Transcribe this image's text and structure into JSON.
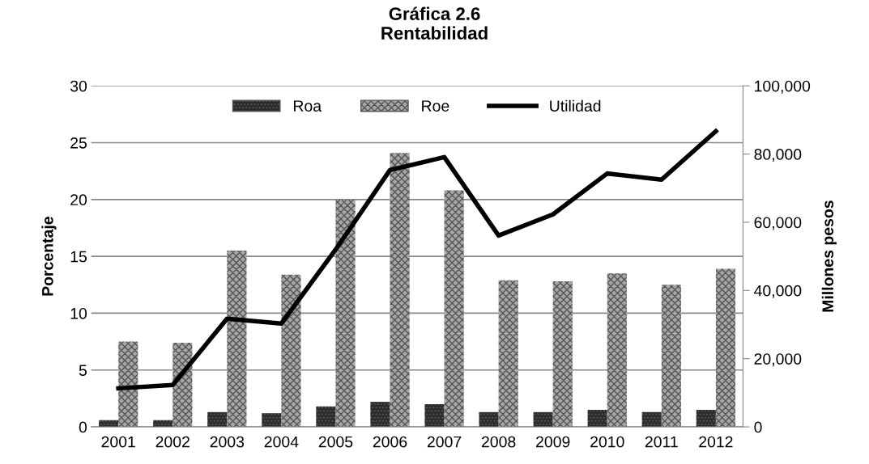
{
  "chart_data": {
    "type": "bar",
    "title": "Gráfica 2.6\nRentabilidad",
    "ylabel": "Porcentaje",
    "y2label": "Millones pesos",
    "categories": [
      "2001",
      "2002",
      "2003",
      "2004",
      "2005",
      "2006",
      "2007",
      "2008",
      "2009",
      "2010",
      "2011",
      "2012"
    ],
    "series": [
      {
        "name": "Roa",
        "color": "#2b2b2b",
        "values": [
          0.6,
          0.6,
          1.3,
          1.2,
          1.8,
          2.2,
          2.0,
          1.3,
          1.3,
          1.5,
          1.3,
          1.5
        ]
      },
      {
        "name": "Roe",
        "color": "#a6a6a6",
        "values": [
          7.5,
          7.4,
          15.5,
          13.4,
          20.0,
          24.1,
          20.8,
          12.9,
          12.8,
          13.5,
          12.5,
          13.9
        ]
      },
      {
        "name": "Utilidad",
        "type": "line",
        "axis": "y2",
        "color": "#000000",
        "values": [
          11300,
          12300,
          31700,
          30300,
          52000,
          75300,
          79100,
          56100,
          62300,
          74300,
          72500,
          86700
        ]
      }
    ],
    "ylim": [
      0,
      30
    ],
    "yticks": [
      0,
      5,
      10,
      15,
      20,
      25,
      30
    ],
    "y2lim": [
      0,
      100000
    ],
    "y2ticks": [
      0,
      {
        "value": 20000,
        "label": "20,000"
      },
      {
        "value": 40000,
        "label": "40,000"
      },
      {
        "value": 60000,
        "label": "60,000"
      },
      {
        "value": 80000,
        "label": "80,000"
      },
      {
        "value": 100000,
        "label": "100,000"
      }
    ],
    "grid": "y",
    "legend": "top",
    "line_style": "solid",
    "marker": "none"
  }
}
